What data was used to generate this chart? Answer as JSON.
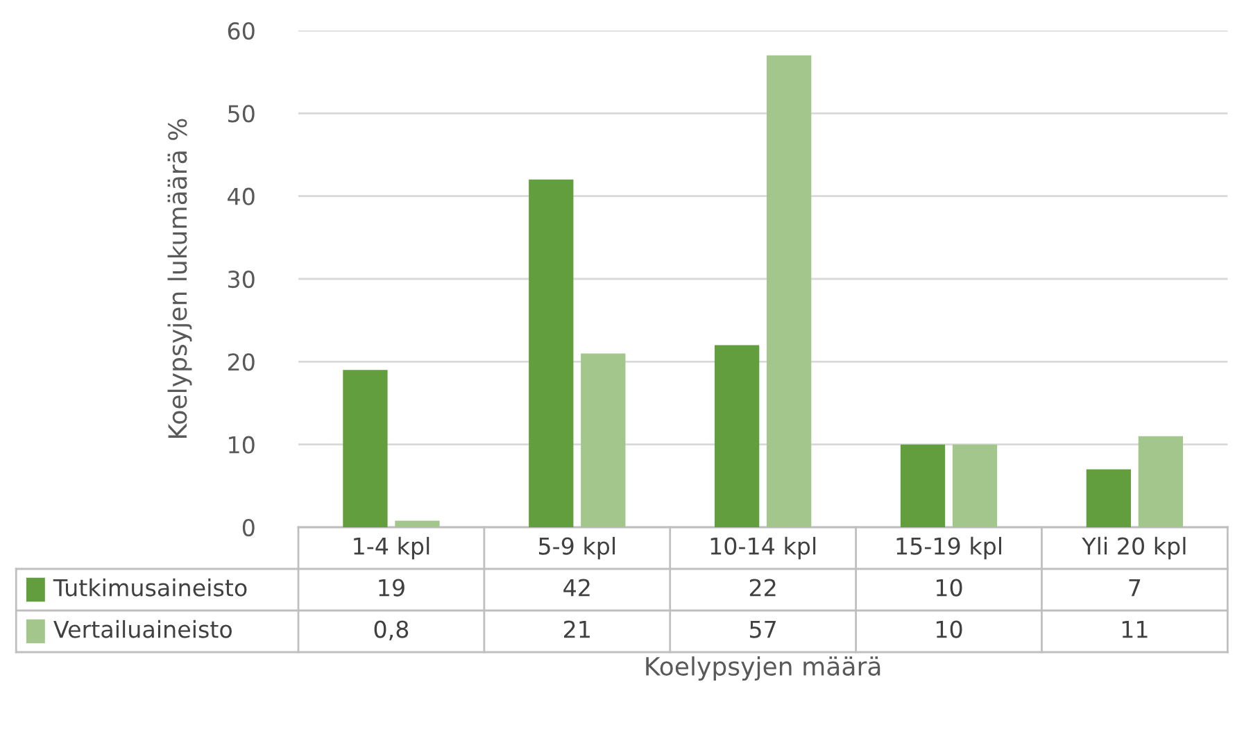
{
  "chart_data": {
    "type": "bar",
    "categories": [
      "1-4 kpl",
      "5-9 kpl",
      "10-14 kpl",
      "15-19 kpl",
      "Yli 20 kpl"
    ],
    "series": [
      {
        "name": "Tutkimusaineisto",
        "color": "#629d3e",
        "values": [
          19,
          42,
          22,
          10,
          7
        ],
        "value_labels": [
          "19",
          "42",
          "22",
          "10",
          "7"
        ]
      },
      {
        "name": "Vertailuaineisto",
        "color": "#a3c68c",
        "values": [
          0.8,
          21,
          57,
          10,
          11
        ],
        "value_labels": [
          "0,8",
          "21",
          "57",
          "10",
          "11"
        ]
      }
    ],
    "xlabel": "Koelypsyjen määrä",
    "ylabel": "Koelypsyjen lukumäärä %",
    "ylim": [
      0,
      60
    ],
    "yticks": [
      0,
      10,
      20,
      30,
      40,
      50,
      60
    ],
    "grid": "y",
    "legend": "bottom"
  }
}
